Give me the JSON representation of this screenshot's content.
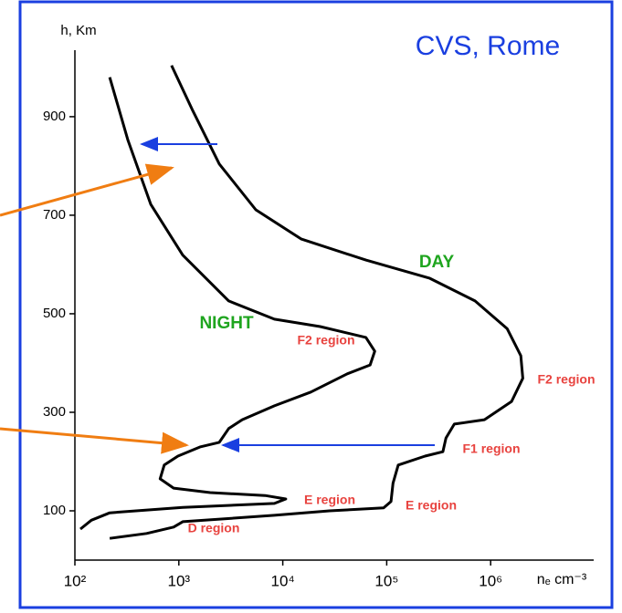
{
  "chart_data": {
    "type": "line",
    "title": "CVS, Rome",
    "x_label": "nₑ cm⁻³",
    "y_label": "h, Km",
    "log_x": true,
    "xlim": [
      100,
      10000000
    ],
    "ylim": [
      0,
      1035
    ],
    "xticks": [
      {
        "value": 100,
        "label": "10²"
      },
      {
        "value": 1000,
        "label": "10³"
      },
      {
        "value": 10000,
        "label": "10⁴"
      },
      {
        "value": 100000,
        "label": "10⁵"
      },
      {
        "value": 1000000,
        "label": "10⁶"
      }
    ],
    "yticks": [
      100,
      300,
      500,
      700,
      900
    ],
    "series": [
      {
        "name": "DAY",
        "color": "#000000",
        "label_color": "#1fa51f",
        "x": [
          851,
          1340,
          2450,
          5500,
          15000,
          63000,
          260000,
          708000,
          1440000,
          1950000,
          2040000,
          1590000,
          871000,
          447000,
          372000,
          347000,
          234000,
          129000,
          115000,
          110000,
          93300,
          28200,
          8300,
          1090,
          891,
          490,
          216
        ],
        "values": [
          1004,
          915,
          804,
          711,
          652,
          609,
          572,
          526,
          470,
          415,
          369,
          322,
          285,
          276,
          248,
          220,
          211,
          193,
          156,
          119,
          106,
          100,
          91,
          78,
          67,
          54,
          44
        ]
      },
      {
        "name": "NIGHT",
        "color": "#000000",
        "label_color": "#1fa51f",
        "x": [
          216,
          324,
          537,
          1090,
          3020,
          8300,
          22900,
          63000,
          76700,
          69200,
          41700,
          18600,
          8300,
          4070,
          3020,
          2450,
          1620,
          980,
          724,
          661,
          891,
          2000,
          6760,
          10700,
          8300,
          1090,
          216,
          144,
          113
        ],
        "values": [
          980,
          852,
          722,
          619,
          526,
          489,
          474,
          452,
          424,
          396,
          378,
          341,
          313,
          285,
          267,
          239,
          230,
          211,
          193,
          165,
          146,
          137,
          131,
          124,
          115,
          107,
          96,
          81,
          63
        ]
      }
    ],
    "annotations": [
      "F2 region",
      "F2 region",
      "F1 region",
      "E region",
      "E region",
      "D region"
    ]
  }
}
